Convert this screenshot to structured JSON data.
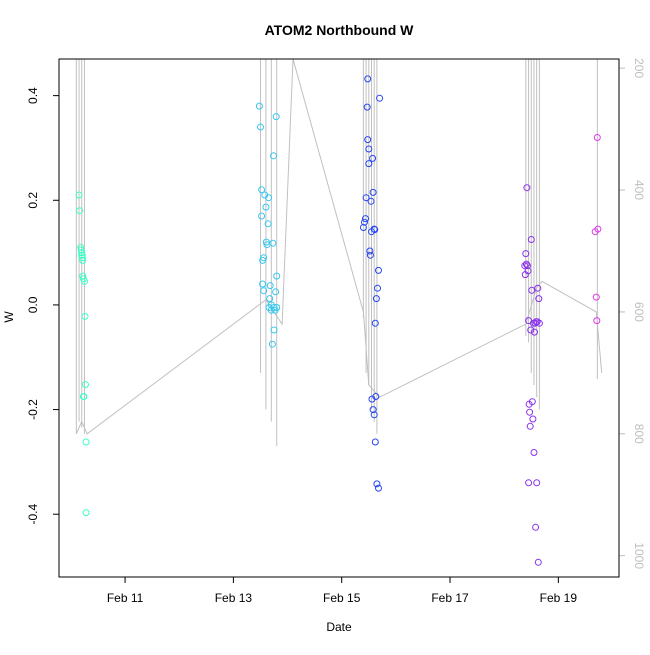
{
  "chart_data": {
    "type": "scatter",
    "title": "ATOM2 Northbound W",
    "xlabel": "Date",
    "ylabel": "W",
    "x_ticks": [
      "Feb 11",
      "Feb 13",
      "Feb 15",
      "Feb 17",
      "Feb 19"
    ],
    "x_tick_values": [
      11,
      13,
      15,
      17,
      19
    ],
    "xlim": [
      9.78,
      20.12
    ],
    "y_ticks": [
      -0.4,
      -0.2,
      0.0,
      0.2,
      0.4
    ],
    "ylim": [
      -0.52,
      0.47
    ],
    "right_axis": {
      "ticks": [
        200,
        400,
        600,
        800,
        1000
      ],
      "lim": [
        1035,
        185
      ],
      "color": "#bebebe",
      "reversed": true
    },
    "grid": false,
    "legend": "none",
    "point_colors": [
      "#3effc8",
      "#36c8f0",
      "#2747f2",
      "#8a32ec",
      "#e03ae8"
    ],
    "line_color": "#c0c0c0",
    "series": [
      {
        "color": "#3effc8",
        "x": [
          10.15,
          10.16,
          10.18,
          10.19,
          10.2,
          10.2,
          10.21,
          10.21,
          10.22,
          10.22,
          10.23,
          10.23,
          10.24,
          10.25,
          10.26,
          10.27,
          10.28,
          10.28
        ],
        "y": [
          0.21,
          0.18,
          0.11,
          0.105,
          0.1,
          0.095,
          0.095,
          0.09,
          0.085,
          0.055,
          0.05,
          -0.175,
          -0.175,
          0.045,
          -0.022,
          -0.152,
          -0.262,
          -0.397
        ]
      },
      {
        "color": "#36c8f0",
        "x": [
          13.48,
          13.5,
          13.52,
          13.52,
          13.54,
          13.54,
          13.56,
          13.56,
          13.58,
          13.6,
          13.61,
          13.62,
          13.64,
          13.65,
          13.66,
          13.67,
          13.68,
          13.7,
          13.7,
          13.72,
          13.73,
          13.74,
          13.75,
          13.75,
          13.77,
          13.78,
          13.79,
          13.8,
          13.8
        ],
        "y": [
          0.38,
          0.34,
          0.22,
          0.17,
          0.085,
          0.04,
          0.09,
          0.027,
          0.21,
          0.187,
          0.12,
          0.115,
          0.155,
          0.205,
          -0.005,
          0.012,
          0.037,
          -0.01,
          0.0,
          -0.075,
          0.118,
          0.285,
          -0.048,
          -0.005,
          -0.01,
          0.025,
          0.36,
          0.055,
          -0.005
        ]
      },
      {
        "color": "#2747f2",
        "x": [
          15.4,
          15.42,
          15.44,
          15.45,
          15.47,
          15.48,
          15.48,
          15.5,
          15.5,
          15.52,
          15.53,
          15.54,
          15.55,
          15.56,
          15.57,
          15.58,
          15.58,
          15.6,
          15.6,
          15.61,
          15.62,
          15.62,
          15.63,
          15.64,
          15.65,
          15.66,
          15.68,
          15.68,
          15.7
        ],
        "y": [
          0.148,
          0.158,
          0.165,
          0.205,
          0.378,
          0.432,
          0.316,
          0.27,
          0.298,
          0.103,
          0.095,
          0.198,
          0.14,
          -0.18,
          0.28,
          0.215,
          -0.2,
          -0.21,
          0.145,
          0.144,
          -0.035,
          -0.262,
          -0.175,
          0.012,
          -0.342,
          0.032,
          -0.35,
          0.066,
          0.395
        ]
      },
      {
        "color": "#8a32ec",
        "x": [
          18.38,
          18.39,
          18.4,
          18.41,
          18.42,
          18.43,
          18.44,
          18.45,
          18.45,
          18.46,
          18.47,
          18.48,
          18.49,
          18.5,
          18.51,
          18.52,
          18.53,
          18.54,
          18.55,
          18.56,
          18.57,
          18.58,
          18.59,
          18.6,
          18.61,
          18.62,
          18.63,
          18.64,
          18.65
        ],
        "y": [
          0.075,
          0.058,
          0.098,
          0.078,
          0.224,
          0.075,
          0.065,
          -0.03,
          -0.34,
          -0.19,
          -0.205,
          -0.232,
          -0.048,
          0.125,
          0.028,
          -0.185,
          -0.218,
          -0.035,
          -0.282,
          -0.052,
          -0.035,
          -0.425,
          -0.032,
          -0.34,
          -0.032,
          0.032,
          -0.492,
          0.012,
          -0.035
        ]
      },
      {
        "color": "#e03ae8",
        "x": [
          19.68,
          19.7,
          19.71,
          19.72,
          19.73
        ],
        "y": [
          0.14,
          0.015,
          -0.03,
          0.32,
          0.145
        ]
      }
    ],
    "depth_trace": {
      "axis": "right",
      "times": [
        10.1,
        10.2,
        10.3,
        13.6,
        13.9,
        14.1,
        15.4,
        15.5,
        15.7,
        18.4,
        18.6,
        18.7,
        19.7,
        19.8
      ],
      "values": [
        800,
        780,
        800,
        580,
        620,
        185,
        600,
        720,
        740,
        620,
        560,
        550,
        600,
        700
      ],
      "vertical_sweeps": [
        {
          "x": 10.1,
          "top": 185,
          "bottom": 800
        },
        {
          "x": 10.15,
          "top": 185,
          "bottom": 780
        },
        {
          "x": 10.2,
          "top": 185,
          "bottom": 790
        },
        {
          "x": 10.25,
          "top": 185,
          "bottom": 800
        },
        {
          "x": 13.5,
          "top": 185,
          "bottom": 700
        },
        {
          "x": 13.6,
          "top": 185,
          "bottom": 760
        },
        {
          "x": 13.7,
          "top": 185,
          "bottom": 780
        },
        {
          "x": 13.8,
          "top": 185,
          "bottom": 820
        },
        {
          "x": 15.4,
          "top": 185,
          "bottom": 610
        },
        {
          "x": 15.45,
          "top": 185,
          "bottom": 700
        },
        {
          "x": 15.5,
          "top": 185,
          "bottom": 720
        },
        {
          "x": 15.55,
          "top": 185,
          "bottom": 760
        },
        {
          "x": 15.6,
          "top": 185,
          "bottom": 780
        },
        {
          "x": 15.65,
          "top": 185,
          "bottom": 800
        },
        {
          "x": 18.4,
          "top": 185,
          "bottom": 640
        },
        {
          "x": 18.45,
          "top": 185,
          "bottom": 650
        },
        {
          "x": 18.5,
          "top": 185,
          "bottom": 700
        },
        {
          "x": 18.55,
          "top": 185,
          "bottom": 720
        },
        {
          "x": 18.6,
          "top": 185,
          "bottom": 740
        },
        {
          "x": 18.65,
          "top": 185,
          "bottom": 760
        },
        {
          "x": 19.72,
          "top": 185,
          "bottom": 710
        }
      ]
    }
  }
}
